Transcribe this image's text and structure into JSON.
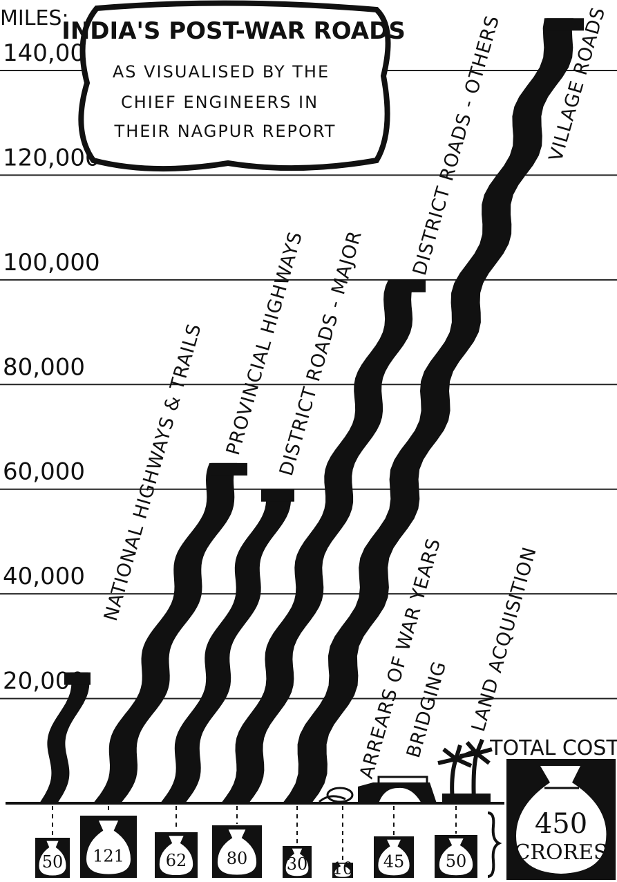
{
  "chart_data": {
    "type": "bar",
    "title": "INDIA'S POST-WAR ROADS",
    "subtitle": [
      "AS VISUALISED BY THE",
      "CHIEF ENGINEERS IN",
      "THEIR NAGPUR REPORT"
    ],
    "ylabel": "MILES:",
    "ylim": [
      0,
      140000
    ],
    "y_ticks": [
      "20,000",
      "40,000",
      "60,000",
      "80,000",
      "100,000",
      "120,000",
      "140,000"
    ],
    "grid": true,
    "categories": [
      "NATIONAL HIGHWAYS & TRAILS",
      "PROVINCIAL HIGHWAYS",
      "DISTRICT ROADS - MAJOR",
      "DISTRICT ROADS - OTHERS",
      "VILLAGE ROADS"
    ],
    "values": [
      25000,
      65000,
      60000,
      100000,
      150000
    ],
    "cost_items": [
      {
        "label": "NATIONAL HIGHWAYS & TRAILS",
        "value": "50"
      },
      {
        "label": "PROVINCIAL HIGHWAYS",
        "value": "121"
      },
      {
        "label": "DISTRICT ROADS - MAJOR",
        "value": "62"
      },
      {
        "label": "DISTRICT ROADS - OTHERS",
        "value": "80"
      },
      {
        "label": "VILLAGE ROADS",
        "value": "30"
      },
      {
        "label": "ARREARS OF WAR YEARS",
        "value": "10"
      },
      {
        "label": "BRIDGING",
        "value": "45"
      },
      {
        "label": "LAND ACQUISITION",
        "value": "50"
      }
    ],
    "extra_labels": [
      "ARREARS OF WAR YEARS",
      "BRIDGING",
      "LAND ACQUISITION"
    ],
    "total": {
      "label": "TOTAL COSTS",
      "value": "450",
      "unit": "CRORES"
    }
  }
}
